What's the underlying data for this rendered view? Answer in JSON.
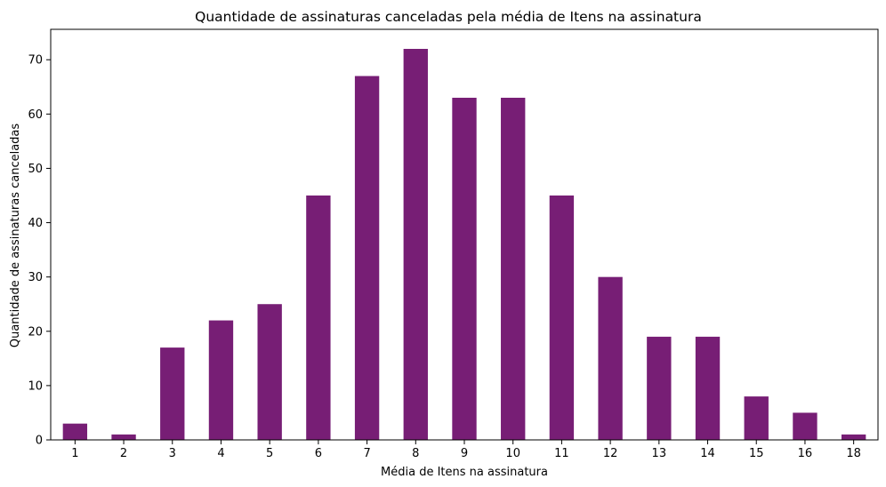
{
  "chart_data": {
    "type": "bar",
    "title": "Quantidade de assinaturas canceladas pela média de Itens na assinatura",
    "xlabel": "Média de Itens na assinatura",
    "ylabel": "Quantidade de assinaturas canceladas",
    "categories": [
      "1",
      "2",
      "3",
      "4",
      "5",
      "6",
      "7",
      "8",
      "9",
      "10",
      "11",
      "12",
      "13",
      "14",
      "15",
      "16",
      "18"
    ],
    "values": [
      3,
      1,
      17,
      22,
      25,
      45,
      67,
      72,
      63,
      63,
      45,
      30,
      19,
      19,
      8,
      5,
      1
    ],
    "ylim": [
      0,
      75.6
    ],
    "yticks": [
      0,
      10,
      20,
      30,
      40,
      50,
      60,
      70
    ],
    "bar_color": "#771e75",
    "grid": false,
    "legend": "none"
  }
}
